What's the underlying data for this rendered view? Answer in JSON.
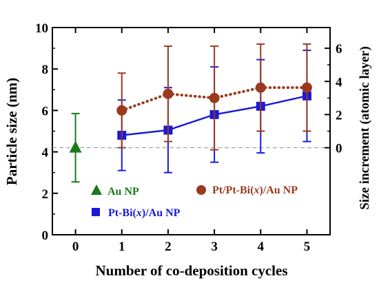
{
  "chart_data": {
    "type": "scatter",
    "xlabel": "Number of co-deposition cycles",
    "ylabel": "Particle size (nm)",
    "y2label": "Size increment (atomic layer)",
    "xlim": [
      -0.5,
      5.5
    ],
    "ylim": [
      0,
      10
    ],
    "x_ticks": [
      0,
      1,
      2,
      3,
      4,
      5
    ],
    "y_ticks": [
      0,
      2,
      4,
      6,
      8,
      10
    ],
    "y2_ticks": [
      0,
      2,
      4,
      6
    ],
    "y2_zero_at_y": 4.2,
    "y2_units_per_y": 0.8,
    "reference_line_y": 4.2,
    "grid": false,
    "series": [
      {
        "name": "Au NP",
        "marker": "triangle",
        "color": "#1a7a1a",
        "line": "none",
        "x": [
          0
        ],
        "y": [
          4.2
        ],
        "err": [
          1.65
        ]
      },
      {
        "name": "Pt-Bi(x)/Au NP",
        "label_parts": [
          "Pt-Bi(",
          "x",
          ")/Au NP"
        ],
        "marker": "square",
        "color": "#1a1ad6",
        "line": "solid",
        "x": [
          1,
          2,
          3,
          4,
          5
        ],
        "y": [
          4.8,
          5.05,
          5.8,
          6.2,
          6.7
        ],
        "err": [
          1.7,
          2.05,
          2.3,
          2.25,
          2.2
        ]
      },
      {
        "name": "Pt/Pt-Bi(x)/Au NP",
        "label_parts": [
          "Pt/Pt-Bi(",
          "x",
          ")/Au NP"
        ],
        "marker": "circle",
        "color": "#9b3a1e",
        "line": "dotted",
        "x": [
          1,
          2,
          3,
          4,
          5
        ],
        "y": [
          6.0,
          6.8,
          6.6,
          7.1,
          7.1
        ],
        "err": [
          1.8,
          2.3,
          2.5,
          2.1,
          2.1
        ]
      }
    ]
  }
}
